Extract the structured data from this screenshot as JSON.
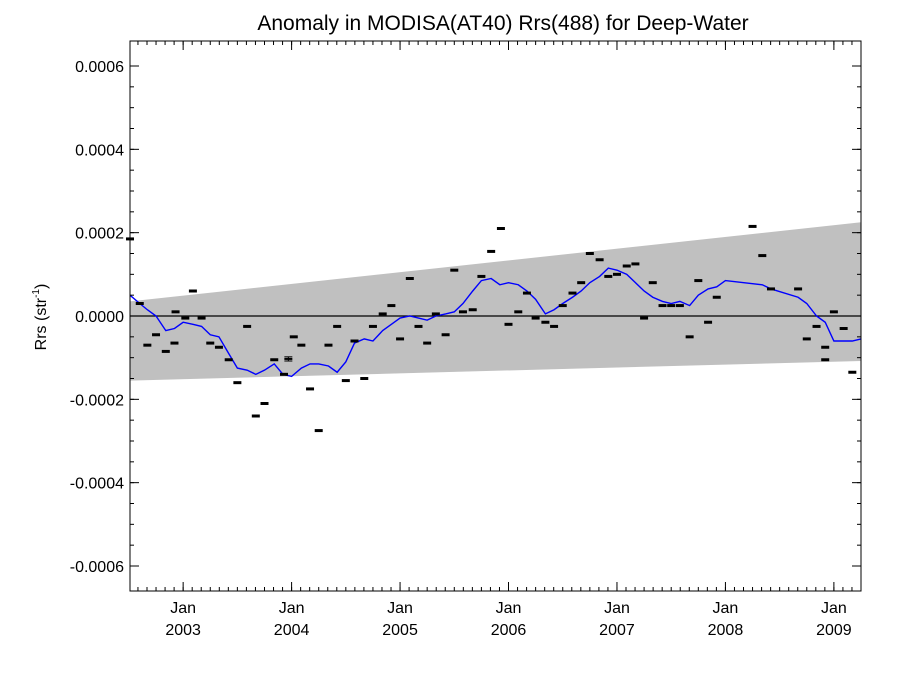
{
  "chart_data": {
    "type": "line",
    "title": "Anomaly in MODISA(AT40) Rrs(488) for Deep-Water",
    "ylabel": "Rrs (str",
    "ylabel_sup": "-1",
    "ylabel_end": ")",
    "xlabel": "",
    "xlim": [
      2002.51,
      2009.25
    ],
    "ylim": [
      -0.00066,
      0.00066
    ],
    "grid": false,
    "yticks": [
      {
        "value": 0.0006,
        "label": "0.0006"
      },
      {
        "value": 0.0004,
        "label": "0.0004"
      },
      {
        "value": 0.0002,
        "label": "0.0002"
      },
      {
        "value": 0.0,
        "label": "0.0000"
      },
      {
        "value": -0.0002,
        "label": "-0.0002"
      },
      {
        "value": -0.0004,
        "label": "-0.0004"
      },
      {
        "value": -0.0006,
        "label": "-0.0006"
      }
    ],
    "xticks": [
      {
        "value": 2003.0,
        "label": "Jan",
        "year": "2003"
      },
      {
        "value": 2004.0,
        "label": "Jan",
        "year": "2004"
      },
      {
        "value": 2005.0,
        "label": "Jan",
        "year": "2005"
      },
      {
        "value": 2006.0,
        "label": "Jan",
        "year": "2006"
      },
      {
        "value": 2007.0,
        "label": "Jan",
        "year": "2007"
      },
      {
        "value": 2008.0,
        "label": "Jan",
        "year": "2008"
      },
      {
        "value": 2009.0,
        "label": "Jan",
        "year": "2009"
      }
    ],
    "zero_line": 0.0,
    "band": {
      "color": "#c0c0c0",
      "upper": [
        [
          2002.51,
          3.5e-05
        ],
        [
          2009.25,
          0.000225
        ]
      ],
      "lower": [
        [
          2002.51,
          -0.000155
        ],
        [
          2009.25,
          -0.000108
        ]
      ]
    },
    "series": [
      {
        "marker": "dash",
        "color": "#000000",
        "points": [
          [
            2002.51,
            0.000185
          ],
          [
            2002.6,
            3e-05
          ],
          [
            2002.67,
            -7e-05
          ],
          [
            2002.75,
            -4.5e-05
          ],
          [
            2002.84,
            -8.5e-05
          ],
          [
            2002.92,
            -6.5e-05
          ],
          [
            2002.93,
            1e-05
          ],
          [
            2003.02,
            -5e-06
          ],
          [
            2003.09,
            6e-05
          ],
          [
            2003.17,
            -5e-06
          ],
          [
            2003.25,
            -6.5e-05
          ],
          [
            2003.33,
            -7.5e-05
          ],
          [
            2003.42,
            -0.000105
          ],
          [
            2003.5,
            -0.00016
          ],
          [
            2003.59,
            -2.5e-05
          ],
          [
            2003.67,
            -0.00024
          ],
          [
            2003.75,
            -0.00021
          ],
          [
            2003.84,
            -0.000105
          ],
          [
            2003.93,
            -0.00014
          ],
          [
            2004.02,
            -5e-05
          ],
          [
            2004.09,
            -7e-05
          ],
          [
            2004.17,
            -0.000175
          ],
          [
            2004.25,
            -0.000275
          ],
          [
            2004.34,
            -7e-05
          ],
          [
            2004.42,
            -2.5e-05
          ],
          [
            2004.5,
            -0.000155
          ],
          [
            2004.58,
            -6e-05
          ],
          [
            2004.67,
            -0.00015
          ],
          [
            2004.75,
            -2.5e-05
          ],
          [
            2004.84,
            5e-06
          ],
          [
            2004.92,
            2.5e-05
          ],
          [
            2005.0,
            -5.5e-05
          ],
          [
            2005.09,
            9e-05
          ],
          [
            2005.17,
            -2.5e-05
          ],
          [
            2005.25,
            -6.5e-05
          ],
          [
            2005.33,
            5e-06
          ],
          [
            2005.42,
            -4.5e-05
          ],
          [
            2005.5,
            0.00011
          ],
          [
            2005.58,
            1e-05
          ],
          [
            2005.67,
            1.5e-05
          ],
          [
            2005.75,
            9.5e-05
          ],
          [
            2005.84,
            0.000155
          ],
          [
            2005.93,
            0.00021
          ],
          [
            2006.0,
            -2e-05
          ],
          [
            2006.09,
            1e-05
          ],
          [
            2006.17,
            5.5e-05
          ],
          [
            2006.25,
            -5e-06
          ],
          [
            2006.34,
            -1.5e-05
          ],
          [
            2006.42,
            -2.5e-05
          ],
          [
            2006.5,
            2.5e-05
          ],
          [
            2006.59,
            5.5e-05
          ],
          [
            2006.67,
            8e-05
          ],
          [
            2006.75,
            0.00015
          ],
          [
            2006.84,
            0.000135
          ],
          [
            2006.92,
            9.5e-05
          ],
          [
            2007.0,
            0.0001
          ],
          [
            2007.09,
            0.00012
          ],
          [
            2007.17,
            0.000125
          ],
          [
            2007.25,
            -5e-06
          ],
          [
            2007.33,
            8e-05
          ],
          [
            2007.42,
            2.5e-05
          ],
          [
            2007.5,
            2.5e-05
          ],
          [
            2007.58,
            2.5e-05
          ],
          [
            2007.67,
            -5e-05
          ],
          [
            2007.75,
            8.5e-05
          ],
          [
            2007.84,
            -1.5e-05
          ],
          [
            2007.92,
            4.5e-05
          ],
          [
            2008.25,
            0.000215
          ],
          [
            2008.34,
            0.000145
          ],
          [
            2008.42,
            6.5e-05
          ],
          [
            2008.67,
            6.5e-05
          ],
          [
            2008.75,
            -5.5e-05
          ],
          [
            2008.84,
            -2.5e-05
          ],
          [
            2008.92,
            -0.000105
          ],
          [
            2008.92,
            -7.5e-05
          ],
          [
            2009.0,
            1e-05
          ],
          [
            2009.09,
            -3e-05
          ],
          [
            2009.17,
            -0.000135
          ]
        ]
      },
      {
        "marker": "line",
        "color": "#0000ff",
        "points": [
          [
            2002.51,
            5e-05
          ],
          [
            2002.6,
            3e-05
          ],
          [
            2002.67,
            1.5e-05
          ],
          [
            2002.75,
            0.0
          ],
          [
            2002.84,
            -3.5e-05
          ],
          [
            2002.92,
            -3e-05
          ],
          [
            2003.0,
            -1.5e-05
          ],
          [
            2003.09,
            -2e-05
          ],
          [
            2003.17,
            -2.5e-05
          ],
          [
            2003.25,
            -4.5e-05
          ],
          [
            2003.33,
            -5e-05
          ],
          [
            2003.42,
            -9e-05
          ],
          [
            2003.5,
            -0.000125
          ],
          [
            2003.59,
            -0.00013
          ],
          [
            2003.67,
            -0.00014
          ],
          [
            2003.75,
            -0.00013
          ],
          [
            2003.84,
            -0.000115
          ],
          [
            2003.92,
            -0.00014
          ],
          [
            2004.0,
            -0.000145
          ],
          [
            2004.09,
            -0.000125
          ],
          [
            2004.17,
            -0.000115
          ],
          [
            2004.25,
            -0.000115
          ],
          [
            2004.34,
            -0.00012
          ],
          [
            2004.42,
            -0.000135
          ],
          [
            2004.5,
            -0.00011
          ],
          [
            2004.58,
            -6.5e-05
          ],
          [
            2004.67,
            -5.5e-05
          ],
          [
            2004.75,
            -6e-05
          ],
          [
            2004.84,
            -3.5e-05
          ],
          [
            2004.92,
            -2e-05
          ],
          [
            2005.0,
            -5e-06
          ],
          [
            2005.09,
            0.0
          ],
          [
            2005.17,
            -5e-06
          ],
          [
            2005.25,
            -1e-05
          ],
          [
            2005.33,
            0.0
          ],
          [
            2005.42,
            5e-06
          ],
          [
            2005.5,
            1e-05
          ],
          [
            2005.58,
            3e-05
          ],
          [
            2005.67,
            6e-05
          ],
          [
            2005.75,
            8.5e-05
          ],
          [
            2005.84,
            9e-05
          ],
          [
            2005.92,
            7.5e-05
          ],
          [
            2006.0,
            8e-05
          ],
          [
            2006.09,
            7.5e-05
          ],
          [
            2006.17,
            6e-05
          ],
          [
            2006.25,
            4e-05
          ],
          [
            2006.34,
            5e-06
          ],
          [
            2006.42,
            1.5e-05
          ],
          [
            2006.5,
            3e-05
          ],
          [
            2006.59,
            4.5e-05
          ],
          [
            2006.67,
            6e-05
          ],
          [
            2006.75,
            8e-05
          ],
          [
            2006.84,
            9.5e-05
          ],
          [
            2006.92,
            0.000115
          ],
          [
            2007.0,
            0.00011
          ],
          [
            2007.09,
            0.0001
          ],
          [
            2007.17,
            8e-05
          ],
          [
            2007.25,
            6e-05
          ],
          [
            2007.33,
            4.5e-05
          ],
          [
            2007.42,
            3.5e-05
          ],
          [
            2007.5,
            3e-05
          ],
          [
            2007.58,
            3.5e-05
          ],
          [
            2007.67,
            2.5e-05
          ],
          [
            2007.75,
            5e-05
          ],
          [
            2007.84,
            6.5e-05
          ],
          [
            2007.92,
            7e-05
          ],
          [
            2008.0,
            8.5e-05
          ],
          [
            2008.34,
            7.5e-05
          ],
          [
            2008.42,
            6.5e-05
          ],
          [
            2008.67,
            4.5e-05
          ],
          [
            2008.75,
            3e-05
          ],
          [
            2008.84,
            0.0
          ],
          [
            2008.92,
            -1.5e-05
          ],
          [
            2009.0,
            -6e-05
          ],
          [
            2009.17,
            -6e-05
          ],
          [
            2009.25,
            -5.5e-05
          ]
        ]
      }
    ],
    "error_bar": {
      "x": 2003.97,
      "y": -0.000103,
      "low": -0.000108,
      "high": -9.8e-05
    }
  }
}
